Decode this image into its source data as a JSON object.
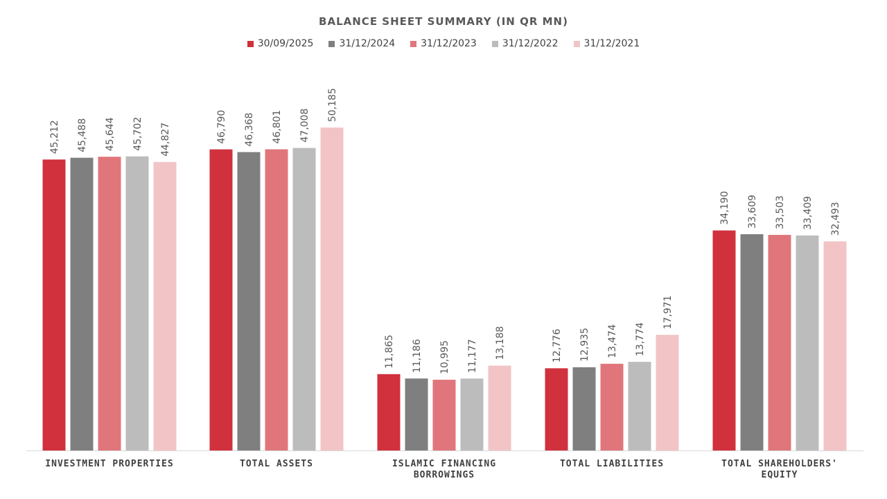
{
  "chart_data": {
    "type": "bar",
    "title": "BALANCE SHEET SUMMARY (IN QR MN)",
    "legend_position": "top",
    "categories": [
      [
        "INVESTMENT PROPERTIES"
      ],
      [
        "TOTAL ASSETS"
      ],
      [
        "ISLAMIC FINANCING",
        "BORROWINGS"
      ],
      [
        "TOTAL LIABILITIES"
      ],
      [
        "TOTAL SHAREHOLDERS'",
        "EQUITY"
      ]
    ],
    "series": [
      {
        "name": "30/09/2025",
        "color": "#d0313d",
        "values": [
          45212,
          46790,
          11865,
          12776,
          34190
        ]
      },
      {
        "name": "31/12/2024",
        "color": "#7f7f7f",
        "values": [
          45488,
          46368,
          11186,
          12935,
          33609
        ]
      },
      {
        "name": "31/12/2023",
        "color": "#e0767b",
        "values": [
          45644,
          46801,
          10995,
          13474,
          33503
        ]
      },
      {
        "name": "31/12/2022",
        "color": "#bcbcbc",
        "values": [
          45702,
          47008,
          11177,
          13774,
          33409
        ]
      },
      {
        "name": "31/12/2021",
        "color": "#f2c4c6",
        "values": [
          44827,
          50185,
          13188,
          17971,
          32493
        ]
      }
    ],
    "ylim": [
      0,
      50185
    ],
    "grid": false
  }
}
